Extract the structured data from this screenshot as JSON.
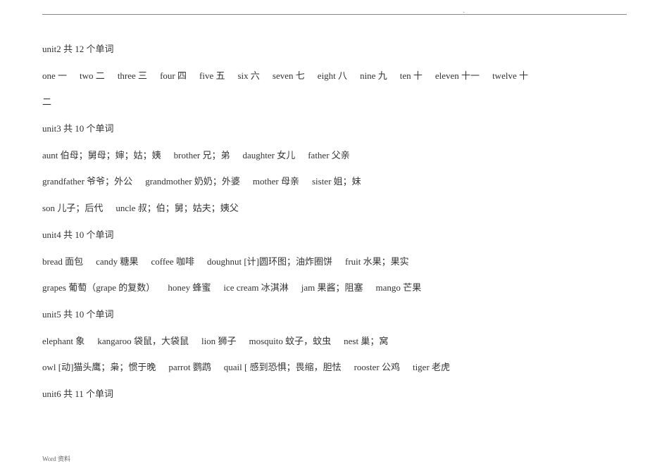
{
  "page": {
    "top_dot": ".",
    "footer": "Word  资料"
  },
  "units": [
    {
      "title": "unit2       共 12 个单词",
      "lines": [
        [
          {
            "word": " one",
            "def": "一"
          },
          {
            "word": "two",
            "def": "二"
          },
          {
            "word": "three",
            "def": "三"
          },
          {
            "word": "four",
            "def": "四"
          },
          {
            "word": "five",
            "def": "五"
          },
          {
            "word": "six",
            "def": "六"
          },
          {
            "word": "seven",
            "def": "七"
          },
          {
            "word": "eight",
            "def": "八"
          },
          {
            "word": "nine",
            "def": "九"
          },
          {
            "word": "ten",
            "def": "十"
          },
          {
            "word": "eleven",
            "def": "十一"
          },
          {
            "word": "twelve",
            "def": "十"
          }
        ],
        [
          {
            "word": "二",
            "def": ""
          }
        ]
      ]
    },
    {
      "title": "unit3       共 10   个单词",
      "lines": [
        [
          {
            "word": "aunt",
            "def": "伯母；舅母；婶；姑；姨"
          },
          {
            "word": "brother",
            "def": "兄；弟"
          },
          {
            "word": "daughter",
            "def": "女儿"
          },
          {
            "word": "father",
            "def": "父亲"
          }
        ],
        [
          {
            "word": "grandfather",
            "def": "爷爷；外公"
          },
          {
            "word": "grandmother",
            "def": "奶奶；外婆"
          },
          {
            "word": "mother",
            "def": "母亲"
          },
          {
            "word": "sister",
            "def": "姐；妹"
          }
        ],
        [
          {
            "word": "son",
            "def": "儿子；后代"
          },
          {
            "word": "uncle",
            "def": "叔；伯；舅；姑夫；姨父"
          }
        ]
      ]
    },
    {
      "title": "unit4       共 10 个单词",
      "lines": [
        [
          {
            "word": " bread",
            "def": "面包"
          },
          {
            "word": "candy",
            "def": "糖果"
          },
          {
            "word": "coffee",
            "def": "咖啡"
          },
          {
            "word": "doughnut",
            "def": " [计]圆环图；油炸圈饼"
          },
          {
            "word": "fruit",
            "def": " 水果；果实"
          }
        ],
        [
          {
            "word": "grapes",
            "def": "葡萄（grape 的复数）"
          },
          {
            "word": "honey",
            "def": " 蜂蜜"
          },
          {
            "word": "ice cream",
            "def": "冰淇淋"
          },
          {
            "word": "jam",
            "def": "果酱；阻塞"
          },
          {
            "word": "mango",
            "def": " 芒果"
          }
        ]
      ]
    },
    {
      "title": "unit5       共 10 个单词",
      "lines": [
        [
          {
            "word": " elephant",
            "def": "象"
          },
          {
            "word": "kangaroo",
            "def": " 袋鼠，大袋鼠"
          },
          {
            "word": "lion",
            "def": "狮子"
          },
          {
            "word": "mosquito",
            "def": " 蚊子，蚊虫"
          },
          {
            "word": "nest",
            "def": "巢；窝"
          }
        ],
        [
          {
            "word": "owl",
            "def": "[动]猫头鹰；枭；惯于晚"
          },
          {
            "word": "parrot",
            "def": "鹦鹉"
          },
          {
            "word": "quail",
            "def": "[ 感到恐惧；畏缩，胆怯"
          },
          {
            "word": "rooster",
            "def": " 公鸡"
          },
          {
            "word": "tiger",
            "def": " 老虎"
          }
        ]
      ]
    },
    {
      "title": "unit6       共 11 个单词",
      "lines": []
    }
  ]
}
